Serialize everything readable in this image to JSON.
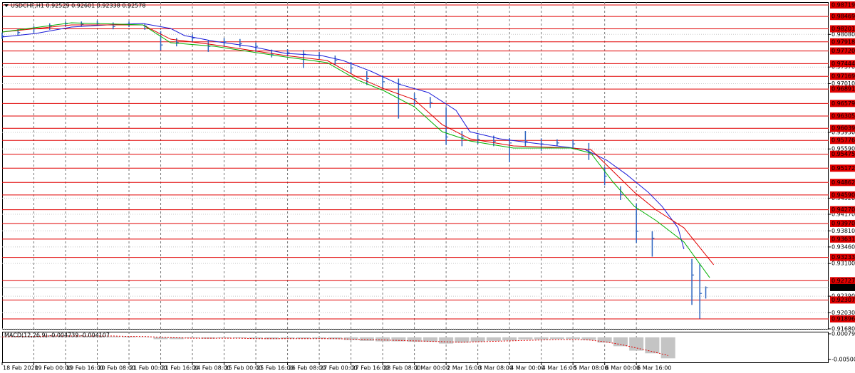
{
  "chart_data": [
    {
      "type": "ohlc",
      "title": "USDCHF,H1 0.92529 0.92601 0.92338 0.92578",
      "x": [
        0,
        8,
        16,
        24,
        32,
        40,
        48,
        56,
        64,
        72,
        80,
        88,
        96,
        104,
        112,
        120,
        128,
        136,
        144,
        152,
        160,
        168,
        176,
        184,
        192,
        200,
        208,
        216,
        224,
        232,
        240,
        248,
        256,
        264,
        272,
        280,
        288,
        296,
        304,
        312,
        320,
        328,
        348,
        352,
        355
      ],
      "high": [
        0.9812,
        0.982,
        0.9826,
        0.9832,
        0.9836,
        0.9836,
        0.9838,
        0.9834,
        0.9836,
        0.9832,
        0.9815,
        0.98,
        0.9808,
        0.9795,
        0.98,
        0.9798,
        0.979,
        0.9775,
        0.9776,
        0.9774,
        0.977,
        0.9762,
        0.9748,
        0.9728,
        0.9718,
        0.9712,
        0.968,
        0.9672,
        0.965,
        0.9598,
        0.959,
        0.9588,
        0.9583,
        0.9598,
        0.9582,
        0.958,
        0.9578,
        0.9572,
        0.952,
        0.9478,
        0.944,
        0.938,
        0.932,
        0.931,
        0.92601
      ],
      "low": [
        0.9798,
        0.9806,
        0.9812,
        0.9818,
        0.9824,
        0.9825,
        0.9826,
        0.9819,
        0.9824,
        0.9818,
        0.9773,
        0.9782,
        0.9792,
        0.977,
        0.9782,
        0.978,
        0.977,
        0.9758,
        0.976,
        0.9735,
        0.9755,
        0.9742,
        0.9722,
        0.9698,
        0.969,
        0.9625,
        0.9655,
        0.9648,
        0.9568,
        0.9565,
        0.957,
        0.9565,
        0.953,
        0.9565,
        0.9555,
        0.9565,
        0.9562,
        0.9535,
        0.948,
        0.9448,
        0.9355,
        0.9325,
        0.922,
        0.919,
        0.92338
      ],
      "close": [
        0.9804,
        0.9812,
        0.982,
        0.9826,
        0.9831,
        0.983,
        0.9832,
        0.9825,
        0.983,
        0.9826,
        0.9785,
        0.979,
        0.98,
        0.9782,
        0.9792,
        0.9788,
        0.9782,
        0.9765,
        0.9768,
        0.9765,
        0.9762,
        0.9752,
        0.9735,
        0.9712,
        0.9705,
        0.97,
        0.9668,
        0.966,
        0.9585,
        0.9585,
        0.958,
        0.9575,
        0.9572,
        0.9575,
        0.957,
        0.9572,
        0.957,
        0.955,
        0.95,
        0.946,
        0.938,
        0.9365,
        0.9285,
        0.9245,
        0.92578
      ],
      "color": "#2c64c0",
      "last": 0.92578,
      "xlim": [
        0,
        417
      ],
      "xticks": [
        {
          "value": 0,
          "label": "18 Feb 2020"
        },
        {
          "value": 16,
          "label": "19 Feb 00:00"
        },
        {
          "value": 32,
          "label": "19 Feb 16:00"
        },
        {
          "value": 48,
          "label": "20 Feb 08:00"
        },
        {
          "value": 64,
          "label": "21 Feb 00:00"
        },
        {
          "value": 80,
          "label": "21 Feb 16:00"
        },
        {
          "value": 96,
          "label": "24 Feb 08:00"
        },
        {
          "value": 112,
          "label": "25 Feb 00:00"
        },
        {
          "value": 128,
          "label": "25 Feb 16:00"
        },
        {
          "value": 144,
          "label": "26 Feb 08:00"
        },
        {
          "value": 160,
          "label": "27 Feb 00:00"
        },
        {
          "value": 176,
          "label": "27 Feb 16:00"
        },
        {
          "value": 192,
          "label": "28 Feb 08:00"
        },
        {
          "value": 208,
          "label": "2 Mar 00:00"
        },
        {
          "value": 224,
          "label": "2 Mar 16:00"
        },
        {
          "value": 240,
          "label": "3 Mar 08:00"
        },
        {
          "value": 256,
          "label": "4 Mar 00:00"
        },
        {
          "value": 272,
          "label": "4 Mar 16:00"
        },
        {
          "value": 288,
          "label": "5 Mar 08:00"
        },
        {
          "value": 304,
          "label": "6 Mar 00:00"
        },
        {
          "value": 320,
          "label": "6 Mar 16:00"
        }
      ],
      "ylim": [
        0.91664,
        0.98781
      ],
      "yticks": [
        {
          "value": 0.9808,
          "label": "0.98080"
        },
        {
          "value": 0.9737,
          "label": "0.97370"
        },
        {
          "value": 0.9701,
          "label": "0.97010"
        },
        {
          "value": 0.9595,
          "label": "0.95950"
        },
        {
          "value": 0.9559,
          "label": "0.95590"
        },
        {
          "value": 0.9452,
          "label": "0.94520"
        },
        {
          "value": 0.9417,
          "label": "0.94170"
        },
        {
          "value": 0.9381,
          "label": "0.93810"
        },
        {
          "value": 0.9346,
          "label": "0.93460"
        },
        {
          "value": 0.931,
          "label": "0.93100"
        },
        {
          "value": 0.9239,
          "label": "0.92390"
        },
        {
          "value": 0.9203,
          "label": "0.92030"
        },
        {
          "value": 0.9168,
          "label": "0.91680"
        }
      ],
      "grid": true,
      "levels": {
        "color": "#e00000",
        "values": [
          0.98719,
          0.98469,
          0.98201,
          0.97918,
          {
            "value": 0.9772,
            "label": "0.97720"
          },
          0.97444,
          0.97169,
          0.96891,
          0.96579,
          0.96305,
          0.96039,
          0.95776,
          0.95475,
          0.95172,
          0.94862,
          {
            "value": 0.9459,
            "label": "0.94590"
          },
          {
            "value": 0.9427,
            "label": "0.94270"
          },
          {
            "value": 0.9397,
            "label": "0.93970"
          },
          0.93631,
          0.93233,
          0.92727,
          0.92307,
          0.91896
        ]
      },
      "moving_averages": [
        {
          "color": "#1a1ad8",
          "x": [
            0,
            17,
            35,
            53,
            71,
            85,
            92,
            107,
            125,
            143,
            161,
            172,
            186,
            200,
            215,
            229,
            236,
            251,
            265,
            280,
            294,
            305,
            315,
            326,
            333,
            341,
            344
          ],
          "values": [
            0.98023,
            0.981,
            0.98239,
            0.98286,
            0.98317,
            0.98208,
            0.98054,
            0.9793,
            0.97821,
            0.97667,
            0.9762,
            0.97512,
            0.9728,
            0.97001,
            0.96816,
            0.96429,
            0.95965,
            0.9581,
            0.95733,
            0.95655,
            0.95578,
            0.95346,
            0.95036,
            0.94649,
            0.9434,
            0.93876,
            0.93412
          ]
        },
        {
          "color": "#e00000",
          "x": [
            0,
            35,
            71,
            85,
            107,
            143,
            164,
            179,
            193,
            208,
            222,
            236,
            258,
            287,
            297,
            308,
            319,
            330,
            344,
            359
          ],
          "values": [
            0.98131,
            0.98286,
            0.98286,
            0.97976,
            0.97852,
            0.9762,
            0.97512,
            0.97156,
            0.96893,
            0.96661,
            0.96119,
            0.9581,
            0.95655,
            0.95609,
            0.95578,
            0.95114,
            0.94649,
            0.94263,
            0.93876,
            0.93072
          ]
        },
        {
          "color": "#00b000",
          "x": [
            0,
            35,
            71,
            85,
            107,
            143,
            164,
            179,
            193,
            208,
            222,
            236,
            258,
            287,
            297,
            308,
            319,
            330,
            344,
            357
          ],
          "values": [
            0.98131,
            0.98332,
            0.98286,
            0.97899,
            0.97821,
            0.97589,
            0.97466,
            0.97094,
            0.96847,
            0.96506,
            0.95965,
            0.95764,
            0.95609,
            0.95609,
            0.95501,
            0.94882,
            0.9434,
            0.94031,
            0.93567,
            0.92793
          ]
        }
      ]
    },
    {
      "type": "macd",
      "title": "MACD(12,26,9) -0.004739 -0.004107",
      "x": [
        0,
        8,
        16,
        24,
        32,
        40,
        48,
        56,
        64,
        72,
        80,
        88,
        96,
        104,
        112,
        120,
        128,
        136,
        144,
        152,
        160,
        168,
        176,
        184,
        192,
        200,
        208,
        216,
        224,
        232,
        240,
        248,
        256,
        264,
        272,
        280,
        288,
        296,
        304,
        312,
        320,
        328,
        336
      ],
      "values": [
        0.0002,
        0.0003,
        0.0003,
        0.0004,
        0.0004,
        0.0003,
        0.0003,
        0.0002,
        0.0002,
        0.0001,
        -0.0004,
        -0.0004,
        -0.0002,
        -0.0003,
        -0.0002,
        -0.0002,
        -0.0003,
        -0.0004,
        -0.0003,
        -0.0003,
        -0.0003,
        -0.0004,
        -0.0006,
        -0.0008,
        -0.0009,
        -0.0009,
        -0.001,
        -0.001,
        -0.0014,
        -0.0012,
        -0.001,
        -0.0008,
        -0.0007,
        -0.0005,
        -0.0005,
        -0.0004,
        -0.0004,
        -0.0006,
        -0.0012,
        -0.002,
        -0.003,
        -0.0036,
        -0.004739
      ],
      "signal": [
        0.0001,
        0.0002,
        0.0002,
        0.0003,
        0.0003,
        0.0003,
        0.0003,
        0.0003,
        0.0002,
        0.0002,
        0,
        -0.0001,
        -0.0002,
        -0.0002,
        -0.0002,
        -0.0002,
        -0.0003,
        -0.0003,
        -0.0003,
        -0.0003,
        -0.0003,
        -0.0003,
        -0.0004,
        -0.0005,
        -0.0006,
        -0.0007,
        -0.0008,
        -0.0009,
        -0.001,
        -0.0011,
        -0.001,
        -0.0009,
        -0.0008,
        -0.0007,
        -0.0006,
        -0.0005,
        -0.0005,
        -0.0006,
        -0.001,
        -0.0016,
        -0.0024,
        -0.0032,
        -0.004107
      ],
      "color": "#c4c4c4",
      "signal_color": "#e00000",
      "xlim": [
        0,
        417
      ],
      "ylim": [
        -0.005646,
        0.00127
      ],
      "yticks": [
        0.000791,
        -0.005002
      ]
    }
  ]
}
